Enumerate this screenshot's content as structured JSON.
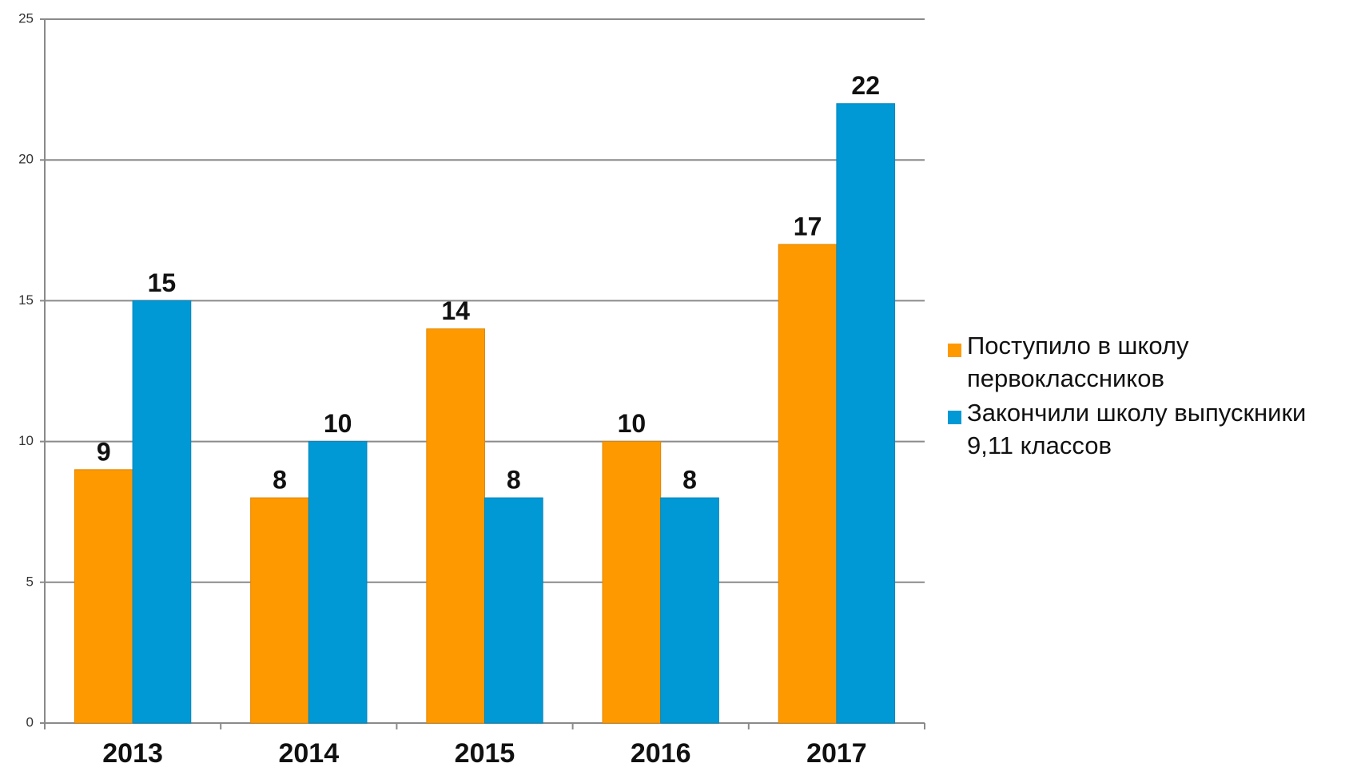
{
  "chart_data": {
    "type": "bar",
    "categories": [
      "2013",
      "2014",
      "2015",
      "2016",
      "2017"
    ],
    "series": [
      {
        "name": "Поступило в школу первоклассников",
        "color": "#ff9900",
        "values": [
          9,
          8,
          14,
          10,
          17
        ]
      },
      {
        "name": "Закончили школу выпускники 9,11 классов",
        "color": "#0099d5",
        "values": [
          15,
          10,
          8,
          8,
          22
        ]
      }
    ],
    "ylim": [
      0,
      25
    ],
    "yticks": [
      0,
      5,
      10,
      15,
      20,
      25
    ],
    "grid": true,
    "legend": "right"
  }
}
